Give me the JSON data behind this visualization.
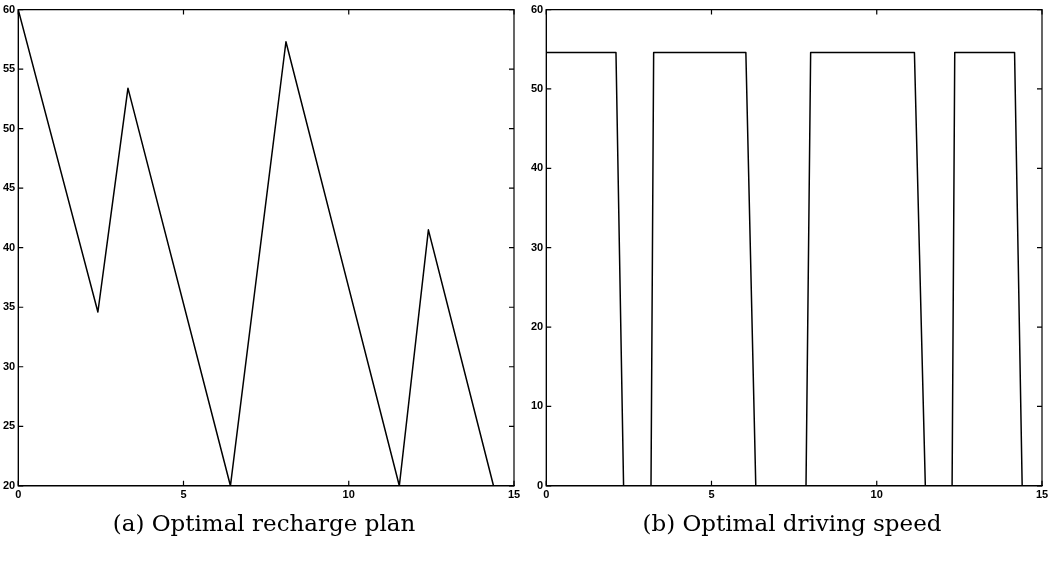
{
  "chart_data": [
    {
      "type": "line",
      "title": "(a) Optimal recharge plan",
      "x": [
        0,
        2.41,
        3.32,
        6.42,
        8.1,
        11.53,
        12.41,
        14.38
      ],
      "series": [
        {
          "color": "#000000",
          "values": [
            60,
            34.6,
            53.4,
            20,
            57.3,
            20,
            41.5,
            20
          ]
        }
      ],
      "xlim": [
        0,
        15
      ],
      "xticks": [
        0,
        5,
        10,
        15
      ],
      "ylim": [
        20,
        60
      ],
      "yticks": [
        20,
        25,
        30,
        35,
        40,
        45,
        50,
        55,
        60
      ],
      "grid": false,
      "legend": false,
      "marker": "none",
      "line_style": "solid"
    },
    {
      "type": "line",
      "title": "(b) Optimal driving speed",
      "x": [
        0,
        2.11,
        2.34,
        3.17,
        3.25,
        6.04,
        6.34,
        7.86,
        8.0,
        11.14,
        11.47,
        12.28,
        12.36,
        14.17,
        14.4,
        15
      ],
      "series": [
        {
          "color": "#000000",
          "values": [
            54.6,
            54.6,
            0,
            0,
            54.6,
            54.6,
            0,
            0,
            54.6,
            54.6,
            0,
            0,
            54.6,
            54.6,
            0,
            0
          ]
        }
      ],
      "xlim": [
        0,
        15
      ],
      "xticks": [
        0,
        5,
        10,
        15
      ],
      "ylim": [
        0,
        60
      ],
      "yticks": [
        0,
        10,
        20,
        30,
        40,
        50,
        60
      ],
      "grid": false,
      "legend": false,
      "marker": "none",
      "line_style": "solid"
    }
  ]
}
